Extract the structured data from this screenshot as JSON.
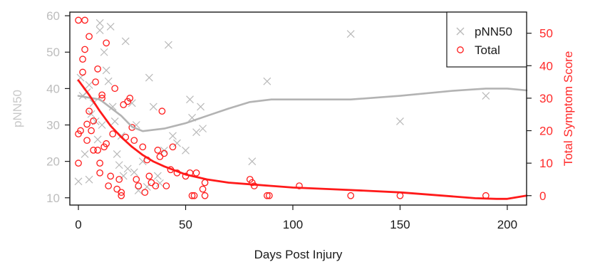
{
  "chart_data": {
    "type": "scatter",
    "xlabel": "Days Post Injury",
    "ylabel_left": "pNN50",
    "ylabel_right": "Total Symptom Score",
    "xlim": [
      -4,
      209
    ],
    "ylim_left": [
      8,
      61
    ],
    "ylim_right": [
      -2.9,
      56.5
    ],
    "xticks": [
      0,
      50,
      100,
      150,
      200
    ],
    "yticks_left": [
      10,
      20,
      30,
      40,
      50,
      60
    ],
    "yticks_right": [
      0,
      10,
      20,
      30,
      40,
      50
    ],
    "legend": {
      "position": "top-right",
      "entries": [
        "pNN50",
        "Total"
      ]
    },
    "colors": {
      "pnn50": "#b9b9b9",
      "total": "#ff1a1a",
      "axis": "#1a1a1a"
    },
    "series": [
      {
        "name": "pNN50",
        "axis": "left",
        "marker": "x",
        "points": [
          [
            0,
            14.5
          ],
          [
            1,
            43
          ],
          [
            2,
            38
          ],
          [
            3,
            22
          ],
          [
            4,
            39
          ],
          [
            5,
            41
          ],
          [
            5,
            15
          ],
          [
            6,
            33
          ],
          [
            7,
            36
          ],
          [
            8,
            31
          ],
          [
            9,
            26
          ],
          [
            10,
            58
          ],
          [
            10,
            56
          ],
          [
            11,
            30
          ],
          [
            12,
            50
          ],
          [
            13,
            45
          ],
          [
            14,
            42
          ],
          [
            15,
            57
          ],
          [
            16,
            35
          ],
          [
            17,
            31
          ],
          [
            18,
            22
          ],
          [
            19,
            19
          ],
          [
            20,
            27
          ],
          [
            21,
            16
          ],
          [
            22,
            53
          ],
          [
            23,
            18
          ],
          [
            25,
            36
          ],
          [
            26,
            17
          ],
          [
            27,
            30
          ],
          [
            28,
            12
          ],
          [
            30,
            20
          ],
          [
            32,
            13
          ],
          [
            33,
            43
          ],
          [
            35,
            35
          ],
          [
            37,
            16
          ],
          [
            38,
            14
          ],
          [
            40,
            23
          ],
          [
            42,
            52
          ],
          [
            44,
            27
          ],
          [
            46,
            25
          ],
          [
            50,
            23
          ],
          [
            52,
            37
          ],
          [
            53,
            32
          ],
          [
            55,
            28
          ],
          [
            57,
            35
          ],
          [
            58,
            29
          ],
          [
            81,
            20
          ],
          [
            88,
            42
          ],
          [
            127,
            55
          ],
          [
            150,
            31
          ],
          [
            190,
            38
          ]
        ]
      },
      {
        "name": "Total",
        "axis": "right",
        "marker": "circle",
        "points": [
          [
            0,
            54
          ],
          [
            0,
            19
          ],
          [
            0,
            10
          ],
          [
            1,
            20
          ],
          [
            2,
            38
          ],
          [
            2,
            42
          ],
          [
            3,
            45
          ],
          [
            3,
            54
          ],
          [
            4,
            22
          ],
          [
            4,
            17
          ],
          [
            5,
            49
          ],
          [
            5,
            26
          ],
          [
            6,
            20
          ],
          [
            7,
            23
          ],
          [
            7,
            14
          ],
          [
            8,
            35
          ],
          [
            9,
            14
          ],
          [
            9,
            39
          ],
          [
            10,
            10
          ],
          [
            10,
            7
          ],
          [
            11,
            31
          ],
          [
            11,
            30
          ],
          [
            12,
            15
          ],
          [
            13,
            47
          ],
          [
            13,
            16
          ],
          [
            14,
            3
          ],
          [
            15,
            6
          ],
          [
            16,
            19
          ],
          [
            17,
            33
          ],
          [
            18,
            2
          ],
          [
            19,
            5
          ],
          [
            20,
            1
          ],
          [
            20,
            0
          ],
          [
            21,
            28
          ],
          [
            22,
            18
          ],
          [
            23,
            29
          ],
          [
            24,
            30
          ],
          [
            25,
            21
          ],
          [
            26,
            17
          ],
          [
            27,
            5
          ],
          [
            28,
            3
          ],
          [
            30,
            15
          ],
          [
            31,
            1
          ],
          [
            32,
            11
          ],
          [
            33,
            6
          ],
          [
            34,
            4
          ],
          [
            36,
            3
          ],
          [
            37,
            14
          ],
          [
            38,
            12
          ],
          [
            39,
            26
          ],
          [
            40,
            13
          ],
          [
            41,
            3
          ],
          [
            43,
            8
          ],
          [
            44,
            15
          ],
          [
            46,
            7
          ],
          [
            50,
            6
          ],
          [
            52,
            7
          ],
          [
            53,
            0
          ],
          [
            54,
            0
          ],
          [
            55,
            7
          ],
          [
            58,
            2
          ],
          [
            59,
            4
          ],
          [
            59,
            0
          ],
          [
            80,
            5
          ],
          [
            81,
            4
          ],
          [
            82,
            3
          ],
          [
            88,
            0
          ],
          [
            89,
            0
          ],
          [
            103,
            3
          ],
          [
            127,
            0
          ],
          [
            150,
            0
          ],
          [
            190,
            0
          ]
        ]
      }
    ],
    "smooth_lines": [
      {
        "series": "pNN50",
        "axis": "left",
        "points": [
          [
            0,
            38
          ],
          [
            10,
            37
          ],
          [
            20,
            32.5
          ],
          [
            25,
            29.5
          ],
          [
            30,
            28.3
          ],
          [
            40,
            29
          ],
          [
            50,
            30.5
          ],
          [
            60,
            32.5
          ],
          [
            70,
            34.5
          ],
          [
            80,
            36.3
          ],
          [
            90,
            37
          ],
          [
            100,
            37
          ],
          [
            127,
            37
          ],
          [
            150,
            38
          ],
          [
            175,
            39.4
          ],
          [
            190,
            40
          ],
          [
            200,
            40
          ],
          [
            209,
            39.5
          ]
        ]
      },
      {
        "series": "Total",
        "axis": "right",
        "points": [
          [
            0,
            35.5
          ],
          [
            5,
            31
          ],
          [
            10,
            26
          ],
          [
            15,
            21.5
          ],
          [
            20,
            18
          ],
          [
            25,
            15
          ],
          [
            30,
            12.5
          ],
          [
            35,
            10.5
          ],
          [
            40,
            9
          ],
          [
            50,
            6.5
          ],
          [
            60,
            5
          ],
          [
            70,
            4
          ],
          [
            80,
            3.5
          ],
          [
            90,
            3
          ],
          [
            100,
            2.5
          ],
          [
            125,
            1.8
          ],
          [
            150,
            1
          ],
          [
            170,
            0
          ],
          [
            185,
            -0.8
          ],
          [
            195,
            -1
          ],
          [
            200,
            -1
          ],
          [
            209,
            0
          ]
        ]
      }
    ]
  }
}
